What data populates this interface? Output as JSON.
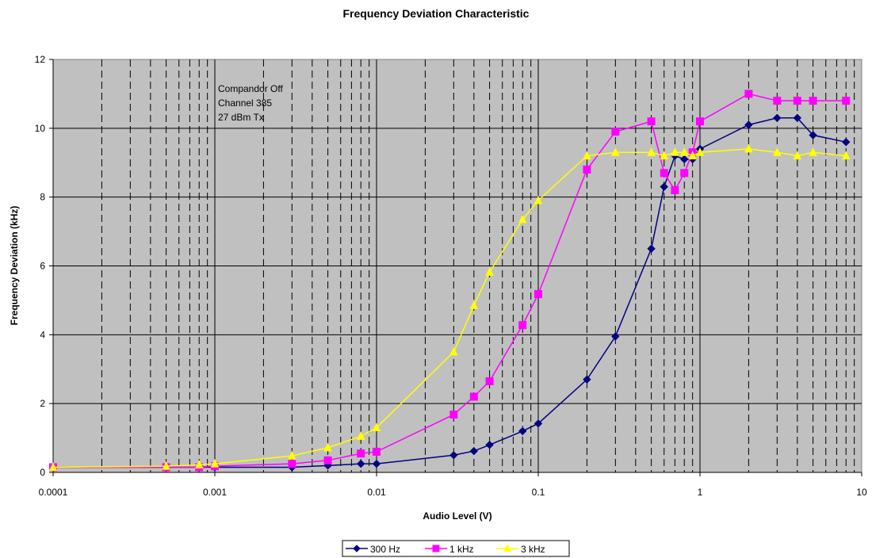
{
  "chart_data": {
    "type": "line",
    "title": "Frequency Deviation Characteristic",
    "xlabel": "Audio Level (V)",
    "ylabel": "Frequency Deviation (kHz)",
    "xscale": "log",
    "xlim": [
      0.0001,
      10
    ],
    "ylim": [
      0,
      12
    ],
    "x_ticks": [
      "0.0001",
      "0.001",
      "0.01",
      "0.1",
      "1",
      "10"
    ],
    "y_ticks": [
      "0",
      "2",
      "4",
      "6",
      "8",
      "10",
      "12"
    ],
    "grid": true,
    "legend_position": "bottom",
    "annotation": [
      "Compandor Off",
      "Channel 385",
      "27 dBm Tx"
    ],
    "series": [
      {
        "name": "300 Hz",
        "color": "#000080",
        "marker": "diamond",
        "x": [
          0.0001,
          0.0005,
          0.0008,
          0.001,
          0.003,
          0.005,
          0.008,
          0.01,
          0.03,
          0.04,
          0.05,
          0.08,
          0.1,
          0.2,
          0.3,
          0.5,
          0.6,
          0.7,
          0.8,
          0.9,
          1,
          2,
          3,
          4,
          5,
          8
        ],
        "y": [
          0.15,
          0.15,
          0.15,
          0.15,
          0.15,
          0.2,
          0.25,
          0.25,
          0.5,
          0.62,
          0.8,
          1.2,
          1.42,
          2.7,
          3.95,
          6.5,
          8.3,
          9.2,
          9.1,
          9.1,
          9.4,
          10.1,
          10.3,
          10.3,
          9.8,
          9.6
        ]
      },
      {
        "name": "1 kHz",
        "color": "#FF00FF",
        "marker": "square",
        "x": [
          0.0001,
          0.0005,
          0.0008,
          0.001,
          0.003,
          0.005,
          0.008,
          0.01,
          0.03,
          0.04,
          0.05,
          0.08,
          0.1,
          0.2,
          0.3,
          0.5,
          0.6,
          0.7,
          0.8,
          0.9,
          1,
          2,
          3,
          4,
          5,
          8
        ],
        "y": [
          0.15,
          0.15,
          0.15,
          0.18,
          0.25,
          0.35,
          0.55,
          0.6,
          1.68,
          2.2,
          2.65,
          4.28,
          5.18,
          8.8,
          9.9,
          10.2,
          8.7,
          8.2,
          8.7,
          9.3,
          10.2,
          11.0,
          10.8,
          10.8,
          10.8,
          10.8
        ]
      },
      {
        "name": "3 kHz",
        "color": "#FFFF00",
        "marker": "triangle",
        "x": [
          0.0001,
          0.0005,
          0.0008,
          0.001,
          0.003,
          0.005,
          0.008,
          0.01,
          0.03,
          0.04,
          0.05,
          0.08,
          0.1,
          0.2,
          0.3,
          0.5,
          0.6,
          0.7,
          0.8,
          0.9,
          1,
          2,
          3,
          4,
          5,
          8
        ],
        "y": [
          0.15,
          0.18,
          0.22,
          0.25,
          0.48,
          0.72,
          1.05,
          1.3,
          3.5,
          4.85,
          5.82,
          7.35,
          7.9,
          9.2,
          9.3,
          9.3,
          9.2,
          9.3,
          9.3,
          9.2,
          9.3,
          9.4,
          9.3,
          9.2,
          9.3,
          9.2
        ]
      }
    ]
  }
}
